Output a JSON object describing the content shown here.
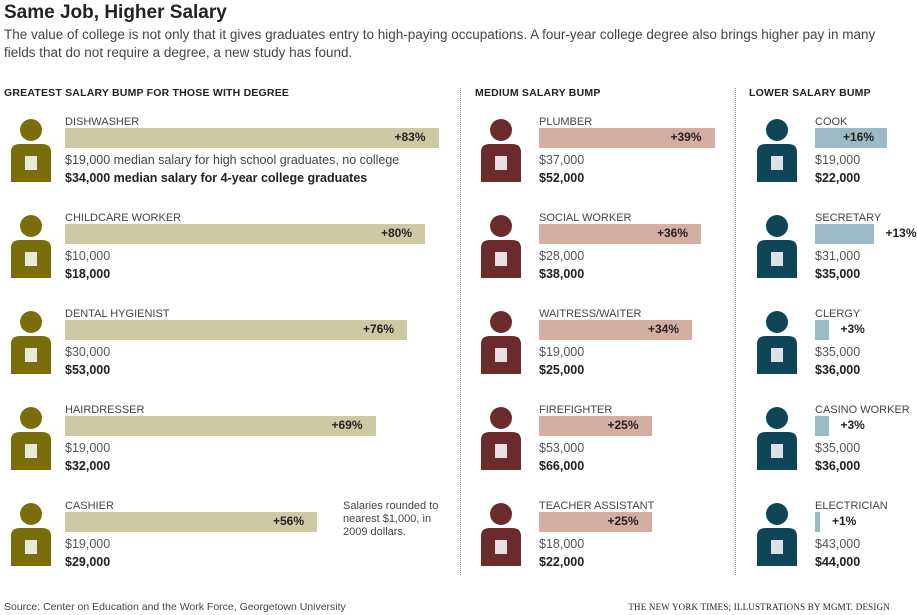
{
  "title": "Same Job, Higher Salary",
  "subtitle": "The value of college is not only that it gives graduates entry to high-paying occupations. A four-year college degree also brings higher pay in many fields that do not require a degree, a new study has found.",
  "note": "Salaries rounded to nearest $1,000, in 2009 dollars.",
  "source": "Source: Center on Education and the Work Force, Georgetown University",
  "credit": "THE NEW YORK TIMES; ILLUSTRATIONS BY MGMT. DESIGN",
  "chart_data": {
    "type": "bar",
    "groups": [
      {
        "heading": "GREATEST SALARY BUMP FOR THOSE WITH DEGREE",
        "bar_color": "#cfc9a3",
        "icon_color": "#7a6e0c",
        "items": [
          {
            "job": "DISHWASHER",
            "pct_label": "+83%",
            "value": 83,
            "hs": "$19,000 median salary for high school graduates, no college",
            "college": "$34,000 median salary for 4-year college graduates",
            "icon": "dishwasher-icon"
          },
          {
            "job": "CHILDCARE WORKER",
            "pct_label": "+80%",
            "value": 80,
            "hs": "$10,000",
            "college": "$18,000",
            "icon": "childcare-worker-icon"
          },
          {
            "job": "DENTAL HYGIENIST",
            "pct_label": "+76%",
            "value": 76,
            "hs": "$30,000",
            "college": "$53,000",
            "icon": "dental-hygienist-icon"
          },
          {
            "job": "HAIRDRESSER",
            "pct_label": "+69%",
            "value": 69,
            "hs": "$19,000",
            "college": "$32,000",
            "icon": "hairdresser-icon"
          },
          {
            "job": "CASHIER",
            "pct_label": "+56%",
            "value": 56,
            "hs": "$19,000",
            "college": "$29,000",
            "icon": "cashier-icon"
          }
        ]
      },
      {
        "heading": "MEDIUM SALARY BUMP",
        "bar_color": "#d5aea3",
        "icon_color": "#6b2a2c",
        "items": [
          {
            "job": "PLUMBER",
            "pct_label": "+39%",
            "value": 39,
            "hs": "$37,000",
            "college": "$52,000",
            "icon": "plumber-icon"
          },
          {
            "job": "SOCIAL WORKER",
            "pct_label": "+36%",
            "value": 36,
            "hs": "$28,000",
            "college": "$38,000",
            "icon": "social-worker-icon"
          },
          {
            "job": "WAITRESS/WAITER",
            "pct_label": "+34%",
            "value": 34,
            "hs": "$19,000",
            "college": "$25,000",
            "icon": "waiter-icon"
          },
          {
            "job": "FIREFIGHTER",
            "pct_label": "+25%",
            "value": 25,
            "hs": "$53,000",
            "college": "$66,000",
            "icon": "firefighter-icon"
          },
          {
            "job": "TEACHER ASSISTANT",
            "pct_label": "+25%",
            "value": 25,
            "hs": "$18,000",
            "college": "$22,000",
            "icon": "teacher-assistant-icon"
          }
        ]
      },
      {
        "heading": "LOWER SALARY BUMP",
        "bar_color": "#9bbac6",
        "icon_color": "#0e4658",
        "items": [
          {
            "job": "COOK",
            "pct_label": "+16%",
            "value": 16,
            "hs": "$19,000",
            "college": "$22,000",
            "icon": "cook-icon"
          },
          {
            "job": "SECRETARY",
            "pct_label": "+13%",
            "value": 13,
            "hs": "$31,000",
            "college": "$35,000",
            "icon": "secretary-icon"
          },
          {
            "job": "CLERGY",
            "pct_label": "+3%",
            "value": 3,
            "hs": "$35,000",
            "college": "$36,000",
            "icon": "clergy-icon"
          },
          {
            "job": "CASINO WORKER",
            "pct_label": "+3%",
            "value": 3,
            "hs": "$35,000",
            "college": "$36,000",
            "icon": "casino-worker-icon"
          },
          {
            "job": "ELECTRICIAN",
            "pct_label": "+1%",
            "value": 1,
            "hs": "$43,000",
            "college": "$44,000",
            "icon": "electrician-icon"
          }
        ]
      }
    ]
  }
}
